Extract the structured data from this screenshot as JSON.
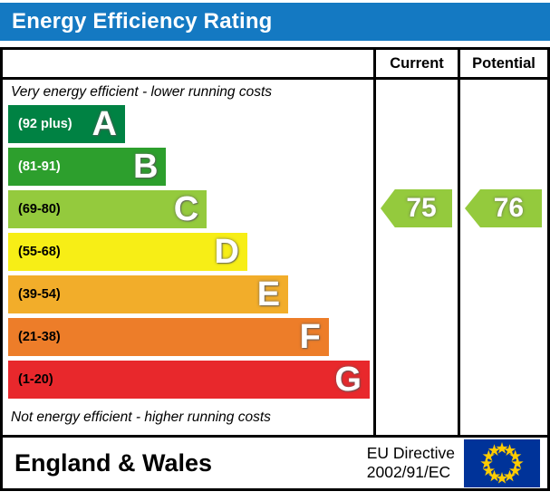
{
  "header": {
    "title": "Energy Efficiency Rating",
    "bar_color": "#1479c2"
  },
  "table": {
    "columns": {
      "current": "Current",
      "potential": "Potential"
    },
    "top_note": "Very energy efficient - lower running costs",
    "bottom_note": "Not energy efficient - higher running costs",
    "bands": [
      {
        "letter": "A",
        "range": "(92 plus)",
        "color": "#008243",
        "width_pct": 32,
        "text_color": "#ffffff"
      },
      {
        "letter": "B",
        "range": "(81-91)",
        "color": "#2d9f2d",
        "width_pct": 43.3,
        "text_color": "#ffffff"
      },
      {
        "letter": "C",
        "range": "(69-80)",
        "color": "#94ca3d",
        "width_pct": 54.4,
        "text_color": "#000000"
      },
      {
        "letter": "D",
        "range": "(55-68)",
        "color": "#f7ee16",
        "width_pct": 65.5,
        "text_color": "#000000"
      },
      {
        "letter": "E",
        "range": "(39-54)",
        "color": "#f2ad2a",
        "width_pct": 76.7,
        "text_color": "#000000"
      },
      {
        "letter": "F",
        "range": "(21-38)",
        "color": "#ed7d29",
        "width_pct": 87.8,
        "text_color": "#000000"
      },
      {
        "letter": "G",
        "range": "(1-20)",
        "color": "#e8282c",
        "width_pct": 99,
        "text_color": "#000000"
      }
    ],
    "current": {
      "value": "75",
      "band": "C",
      "color": "#94ca3d"
    },
    "potential": {
      "value": "76",
      "band": "C",
      "color": "#94ca3d"
    }
  },
  "footer": {
    "region": "England & Wales",
    "directive_line1": "EU Directive",
    "directive_line2": "2002/91/EC",
    "flag_colors": {
      "field": "#003399",
      "stars": "#ffcc00"
    }
  },
  "chart_data": {
    "type": "bar",
    "title": "Energy Efficiency Rating",
    "categories": [
      "A",
      "B",
      "C",
      "D",
      "E",
      "F",
      "G"
    ],
    "band_ranges": [
      "92 plus",
      "81-91",
      "69-80",
      "55-68",
      "39-54",
      "21-38",
      "1-20"
    ],
    "band_colors": [
      "#008243",
      "#2d9f2d",
      "#94ca3d",
      "#f7ee16",
      "#f2ad2a",
      "#ed7d29",
      "#e8282c"
    ],
    "band_width_pct": [
      32,
      43.3,
      54.4,
      65.5,
      76.7,
      87.8,
      99
    ],
    "series": [
      {
        "name": "Current",
        "value": 75,
        "band": "C"
      },
      {
        "name": "Potential",
        "value": 76,
        "band": "C"
      }
    ],
    "annotations": [
      "Very energy efficient - lower running costs",
      "Not energy efficient - higher running costs"
    ],
    "footer": "England & Wales | EU Directive 2002/91/EC"
  }
}
